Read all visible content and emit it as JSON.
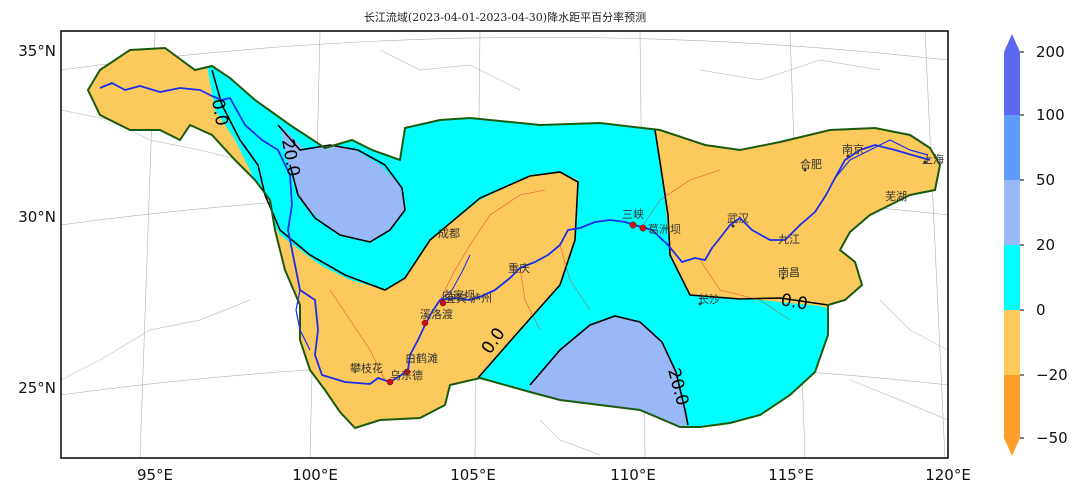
{
  "title": "长江流域(2023-04-01-2023-04-30)降水距平百分率预测",
  "map": {
    "lon_ticks": [
      "95°E",
      "100°E",
      "105°E",
      "110°E",
      "115°E",
      "120°E"
    ],
    "lat_ticks": [
      "35°N",
      "30°N",
      "25°N"
    ],
    "contour_labels": [
      "0.0",
      "20.0",
      "0.0",
      "20.0",
      "0.0"
    ],
    "cities": [
      "成都",
      "重庆",
      "宜宾",
      "泸州",
      "攀枝花",
      "乌东德",
      "白鹤滩",
      "溪洛渡",
      "向家坝",
      "三峡",
      "葛洲坝",
      "武汉",
      "九江",
      "南昌",
      "长沙",
      "合肥",
      "南京",
      "芜湖",
      "上海"
    ],
    "colors": {
      "neg_20_0": "#fbc95c",
      "pos_0_20": "#00ffff",
      "pos_20_50": "#99b8f7",
      "pos_50_100": "#5f9cfa",
      "pos_100_200": "#5b68f0",
      "neg_50_20": "#ff9d2a",
      "river": "#1a2df0",
      "basin_border": "#1b5a0d",
      "contour": "#000000"
    }
  },
  "colorbar": {
    "ticks": [
      "200",
      "100",
      "50",
      "20",
      "0",
      "−20",
      "−50"
    ]
  }
}
